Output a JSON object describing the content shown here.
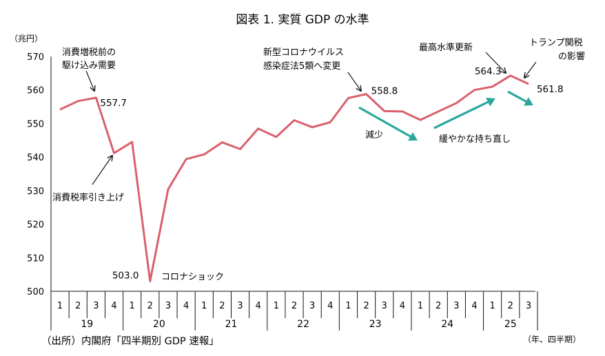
{
  "chart_data": {
    "type": "line",
    "title": "図表 1. 実質 GDP の水準",
    "ylabel": "（兆円）",
    "xlabel": "（年、四半期）",
    "ylim": [
      500,
      570
    ],
    "yticks": [
      500,
      510,
      520,
      530,
      540,
      550,
      560,
      570
    ],
    "years": [
      "19",
      "20",
      "21",
      "22",
      "23",
      "24",
      "25"
    ],
    "quarter_labels": [
      "1",
      "2",
      "3",
      "4",
      "1",
      "2",
      "3",
      "4",
      "1",
      "2",
      "3",
      "4",
      "1",
      "2",
      "3",
      "4",
      "1",
      "2",
      "3",
      "4",
      "1",
      "2",
      "3",
      "4",
      "1",
      "2",
      "3"
    ],
    "line_color": "#d9606b",
    "arrow_color": "#2aa79b",
    "series": [
      {
        "values": [
          554.2,
          556.7,
          557.7,
          541.2,
          544.5,
          503.0,
          530.4,
          539.4,
          540.8,
          544.4,
          542.4,
          548.5,
          546.0,
          551.0,
          548.9,
          550.4,
          557.6,
          558.8,
          553.7,
          553.6,
          551.1,
          553.6,
          556.1,
          560.0,
          561.0,
          564.3,
          561.8
        ]
      }
    ],
    "data_labels": [
      {
        "index": 2,
        "text": "557.7"
      },
      {
        "index": 5,
        "text": "503.0"
      },
      {
        "index": 17,
        "text": "558.8"
      },
      {
        "index": 25,
        "text": "564.3"
      },
      {
        "index": 26,
        "text": "561.8"
      }
    ],
    "annotations": [
      {
        "lines": [
          "消費増税前の",
          "駆け込み需要"
        ]
      },
      {
        "lines": [
          "消費税率引き上げ"
        ]
      },
      {
        "lines": [
          "コロナショック"
        ]
      },
      {
        "lines": [
          "新型コロナウイルス",
          "感染症法5類へ変更"
        ]
      },
      {
        "lines": [
          "減少"
        ]
      },
      {
        "lines": [
          "緩やかな持ち直し"
        ]
      },
      {
        "lines": [
          "最高水準更新"
        ]
      },
      {
        "lines": [
          "トランプ関税",
          "の影響"
        ]
      }
    ]
  },
  "source": "（出所）内閣府「四半期別 GDP 速報」"
}
